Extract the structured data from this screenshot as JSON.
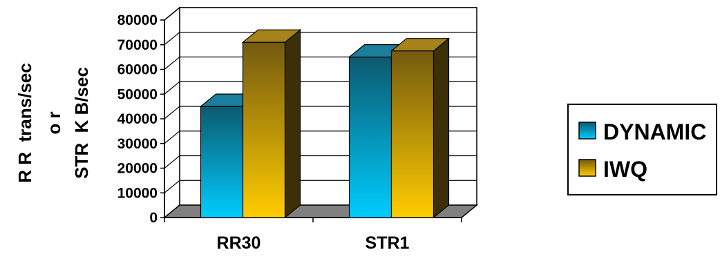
{
  "chart_data": {
    "type": "bar",
    "style": "3d-clustered-column",
    "ylabel_lines": [
      "R R  trans/sec",
      "o r",
      "STR  K B/sec"
    ],
    "categories": [
      "RR30",
      "STR1"
    ],
    "series": [
      {
        "name": "DYNAMIC",
        "values": [
          45000,
          65000
        ]
      },
      {
        "name": "IWQ",
        "values": [
          71000,
          67500
        ]
      }
    ],
    "ylim": [
      0,
      80000
    ],
    "yticks": [
      "0",
      "10000",
      "20000",
      "30000",
      "40000",
      "50000",
      "60000",
      "70000",
      "80000"
    ],
    "grid": true,
    "legend_position": "right",
    "colors": {
      "DYNAMIC_top": "#0c5a70",
      "DYNAMIC_bottom": "#00ccff",
      "DYNAMIC_side": "#083846",
      "DYNAMIC_cap": "#1a7e9c",
      "IWQ_top": "#735a10",
      "IWQ_bottom": "#ffcc00",
      "IWQ_side": "#3d3008",
      "IWQ_cap": "#a5831a",
      "floor": "#808080"
    }
  }
}
